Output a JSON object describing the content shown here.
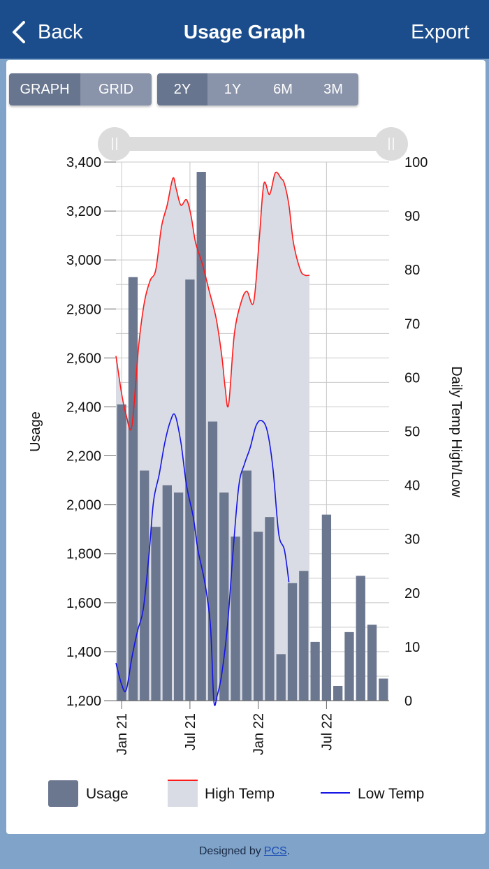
{
  "header": {
    "back_label": "Back",
    "title": "Usage Graph",
    "export_label": "Export"
  },
  "view_toggle": {
    "graph_label": "GRAPH",
    "grid_label": "GRID",
    "selected": "GRAPH"
  },
  "range_toggle": {
    "options": [
      "2Y",
      "1Y",
      "6M",
      "3M"
    ],
    "selected": "2Y"
  },
  "footer": {
    "prefix": "Designed by",
    "link": "PCS",
    "suffix": "."
  },
  "colors": {
    "usage_bar": "#6b768f",
    "high_temp_line": "#ff1a1a",
    "high_temp_fill": "#d9dce4",
    "low_temp_line": "#1414e6"
  },
  "chart_data": {
    "type": "bar",
    "left_axis": {
      "label": "Usage",
      "min": 1200,
      "max": 3400,
      "ticks": [
        "1,200",
        "1,400",
        "1,600",
        "1,800",
        "2,000",
        "2,200",
        "2,400",
        "2,600",
        "2,800",
        "3,000",
        "3,200",
        "3,400"
      ]
    },
    "right_axis": {
      "label": "Daily Temp High/Low",
      "min": 0,
      "max": 100,
      "ticks": [
        "0",
        "10",
        "20",
        "30",
        "40",
        "50",
        "60",
        "70",
        "80",
        "90",
        "100"
      ]
    },
    "x_labels": [
      "Jan 21",
      "Jul 21",
      "Jan 22",
      "Jul 22"
    ],
    "x_label_positions": [
      0.5,
      6.5,
      12.5,
      18.5
    ],
    "series": [
      {
        "name": "Usage",
        "values": [
          2410,
          2930,
          2140,
          1910,
          2080,
          2050,
          2920,
          3360,
          2340,
          2050,
          1870,
          2140,
          1890,
          1950,
          1390,
          1680,
          1730,
          1440,
          1960,
          1260,
          1480,
          1710,
          1510,
          1290
        ]
      },
      {
        "name": "High Temp",
        "points": [
          [
            0,
            64
          ],
          [
            0.5,
            57
          ],
          [
            0.9,
            53
          ],
          [
            1.4,
            51
          ],
          [
            2.0,
            66
          ],
          [
            2.5,
            74
          ],
          [
            3.0,
            78
          ],
          [
            3.5,
            80
          ],
          [
            4.0,
            88
          ],
          [
            4.5,
            92
          ],
          [
            5.0,
            97
          ],
          [
            5.3,
            95
          ],
          [
            5.7,
            92
          ],
          [
            6.2,
            93
          ],
          [
            6.6,
            90
          ],
          [
            7.0,
            85
          ],
          [
            7.6,
            81
          ],
          [
            8.2,
            76
          ],
          [
            8.8,
            71
          ],
          [
            9.3,
            64
          ],
          [
            9.6,
            58
          ],
          [
            9.9,
            55
          ],
          [
            10.4,
            68
          ],
          [
            11.0,
            74
          ],
          [
            11.5,
            76
          ],
          [
            12.1,
            74
          ],
          [
            12.6,
            86
          ],
          [
            13.0,
            96
          ],
          [
            13.5,
            94
          ],
          [
            14.0,
            98
          ],
          [
            14.5,
            97
          ],
          [
            14.8,
            96
          ],
          [
            15.2,
            92
          ],
          [
            15.6,
            85
          ],
          [
            16.2,
            80
          ],
          [
            16.6,
            79
          ],
          [
            17.0,
            79
          ]
        ]
      },
      {
        "name": "Low Temp",
        "points": [
          [
            0,
            7
          ],
          [
            0.5,
            3
          ],
          [
            0.9,
            2
          ],
          [
            1.4,
            8
          ],
          [
            1.9,
            13
          ],
          [
            2.4,
            17
          ],
          [
            2.9,
            27
          ],
          [
            3.3,
            37
          ],
          [
            3.8,
            42
          ],
          [
            4.3,
            48
          ],
          [
            4.8,
            52
          ],
          [
            5.2,
            53
          ],
          [
            5.7,
            48
          ],
          [
            6.2,
            40
          ],
          [
            6.8,
            34
          ],
          [
            7.2,
            28
          ],
          [
            7.8,
            22
          ],
          [
            8.3,
            14
          ],
          [
            8.6,
            0
          ],
          [
            8.9,
            1
          ],
          [
            9.3,
            5
          ],
          [
            9.8,
            14
          ],
          [
            10.3,
            28
          ],
          [
            10.8,
            40
          ],
          [
            11.3,
            44
          ],
          [
            11.8,
            47
          ],
          [
            12.3,
            51
          ],
          [
            12.8,
            52
          ],
          [
            13.3,
            50
          ],
          [
            13.8,
            43
          ],
          [
            14.3,
            31
          ],
          [
            14.8,
            28
          ],
          [
            15.2,
            22
          ]
        ]
      }
    ],
    "legend": [
      "Usage",
      "High Temp",
      "Low Temp"
    ],
    "legend_position": "bottom"
  }
}
